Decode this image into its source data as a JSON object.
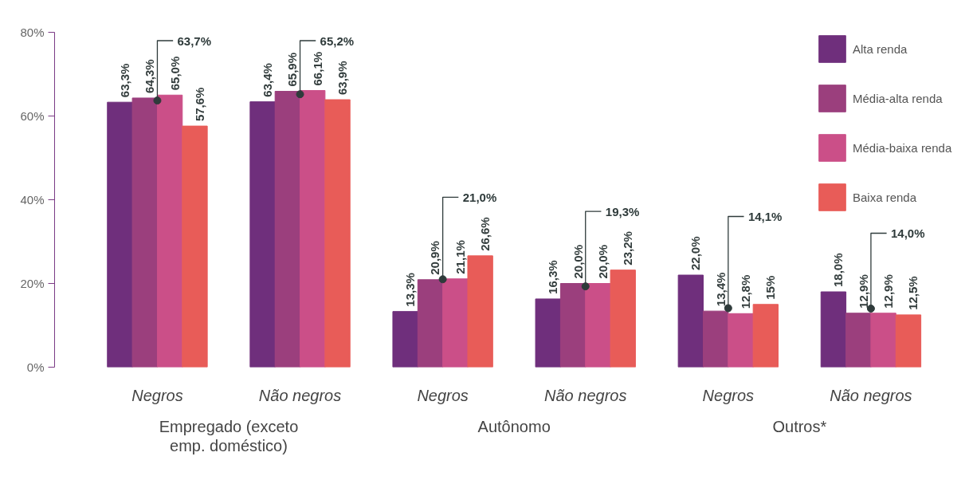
{
  "chart_data": {
    "type": "bar",
    "categories": [
      "Negros",
      "Não negros",
      "Negros",
      "Não negros",
      "Negros",
      "Não negros"
    ],
    "series": [
      {
        "name": "Alta renda",
        "color": "#6f2f7c",
        "values": [
          63.3,
          63.4,
          13.3,
          16.3,
          22.0,
          18.0
        ],
        "value_labels": [
          "63,3%",
          "63,4%",
          "13,3%",
          "16,3%",
          "22,0%",
          "18,0%"
        ]
      },
      {
        "name": "Média-alta renda",
        "color": "#9b3f7d",
        "values": [
          64.3,
          65.9,
          20.9,
          20.0,
          13.4,
          12.9
        ],
        "value_labels": [
          "64,3%",
          "65,9%",
          "20,9%",
          "20,0%",
          "13,4%",
          "12,9%"
        ]
      },
      {
        "name": "Média-baixa renda",
        "color": "#cb4f88",
        "values": [
          65.0,
          66.1,
          21.1,
          20.0,
          12.8,
          12.9
        ],
        "value_labels": [
          "65,0%",
          "66,1%",
          "21,1%",
          "20,0%",
          "12,8%",
          "12,9%"
        ]
      },
      {
        "name": "Baixa renda",
        "color": "#e85c58",
        "values": [
          57.6,
          63.9,
          26.6,
          23.2,
          15,
          12.5
        ],
        "value_labels": [
          "57,6%",
          "63,9%",
          "26,6%",
          "23,2%",
          "15%",
          "12,5%"
        ]
      },
      {
        "type": "scatter",
        "color": "#2f3b3b",
        "marker": "circle",
        "values": [
          63.7,
          65.2,
          21.0,
          19.3,
          14.1,
          14.0
        ],
        "value_labels": [
          "63,7%",
          "65,2%",
          "21,0%",
          "19,3%",
          "14,1%",
          "14,0%"
        ]
      }
    ],
    "ylim": [
      0,
      80
    ],
    "yticks": [
      {
        "value": 0,
        "label": "0%"
      },
      {
        "value": 20,
        "label": "20%"
      },
      {
        "value": 40,
        "label": "40%"
      },
      {
        "value": 60,
        "label": "60%"
      },
      {
        "value": 80,
        "label": "80%"
      }
    ],
    "grid": false,
    "legend": "top right",
    "annotations": [
      "Empregado (exceto emp. doméstico)",
      "Autônomo",
      "Outros*"
    ]
  }
}
